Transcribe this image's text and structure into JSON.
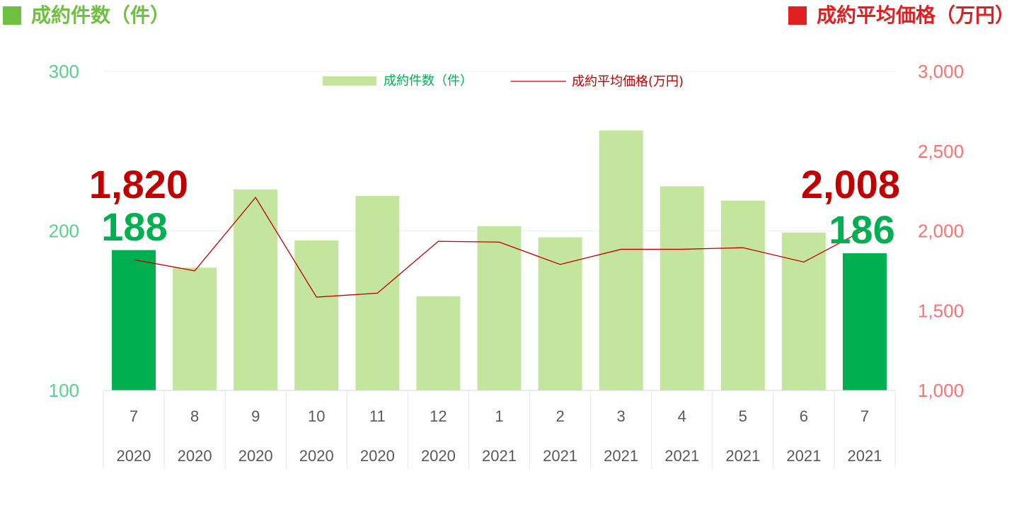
{
  "header": {
    "left_title": "成約件数（件）",
    "right_title": "成約平均価格（万円）"
  },
  "colors": {
    "bar": "#c4e59e",
    "bar_highlight": "#00b050",
    "line": "#c00000",
    "left_axis": "#5ccf8d",
    "right_axis": "#ff7070",
    "left_header": "#6fbf40",
    "right_header": "#e02020",
    "grid": "#eeeeee",
    "table_line": "#e6e6e6"
  },
  "chart_data": {
    "type": "bar",
    "categories": [
      "7",
      "8",
      "9",
      "10",
      "11",
      "12",
      "1",
      "2",
      "3",
      "4",
      "5",
      "6",
      "7"
    ],
    "years": [
      "2020",
      "2020",
      "2020",
      "2020",
      "2020",
      "2020",
      "2021",
      "2021",
      "2021",
      "2021",
      "2021",
      "2021",
      "2021"
    ],
    "series": [
      {
        "name": "成約件数（件）",
        "type": "bar",
        "axis": "left",
        "values": [
          188,
          177,
          226,
          194,
          222,
          159,
          203,
          196,
          263,
          228,
          219,
          199,
          186
        ],
        "highlight": [
          0,
          12
        ]
      },
      {
        "name": "成約平均価格(万円)",
        "type": "line",
        "axis": "right",
        "values": [
          1820,
          1750,
          2210,
          1585,
          1610,
          1935,
          1930,
          1790,
          1885,
          1885,
          1895,
          1805,
          2008
        ]
      }
    ],
    "y_left": {
      "min": 100,
      "max": 300,
      "ticks": [
        "100",
        "200",
        "300"
      ]
    },
    "y_right": {
      "min": 1000,
      "max": 3000,
      "ticks": [
        "1,000",
        "1,500",
        "2,000",
        "2,500",
        "3,000"
      ]
    },
    "grid": true,
    "legend": "top-center",
    "annotations": {
      "first_price": "1,820",
      "first_count": "188",
      "last_price": "2,008",
      "last_count": "186"
    }
  }
}
